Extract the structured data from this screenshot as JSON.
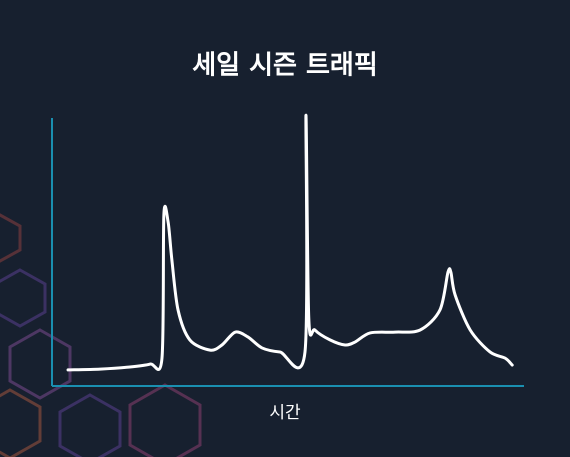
{
  "chart_data": {
    "type": "line",
    "title": "세일 시즌 트래픽",
    "x_label": "시간",
    "x": [
      3.4,
      10.2,
      16.5,
      20.8,
      23.3,
      23.7,
      24.6,
      25.4,
      26.7,
      29.2,
      33.5,
      36,
      38.8,
      41.5,
      44.5,
      48.3,
      53.6,
      53.8,
      54.4,
      55.7,
      58.9,
      62.1,
      64.2,
      67.4,
      72.7,
      78,
      82.2,
      83.9,
      84.5,
      85.4,
      88.6,
      92.8,
      96,
      97.5
    ],
    "values": [
      6,
      6.3,
      7.1,
      8.2,
      10.4,
      63.8,
      61.2,
      47,
      28.4,
      17.2,
      13.4,
      15.3,
      20.1,
      18.3,
      14.2,
      12.7,
      12.7,
      101,
      25.4,
      20.9,
      17.2,
      15.3,
      16.4,
      19.8,
      20.1,
      20.9,
      28.4,
      42.5,
      42.5,
      34,
      20.9,
      12.7,
      10.4,
      7.8
    ],
    "xlim": [
      0,
      100
    ],
    "ylim": [
      0,
      100
    ],
    "color": "#ffffff",
    "axis_color": "#1a8fb0"
  }
}
